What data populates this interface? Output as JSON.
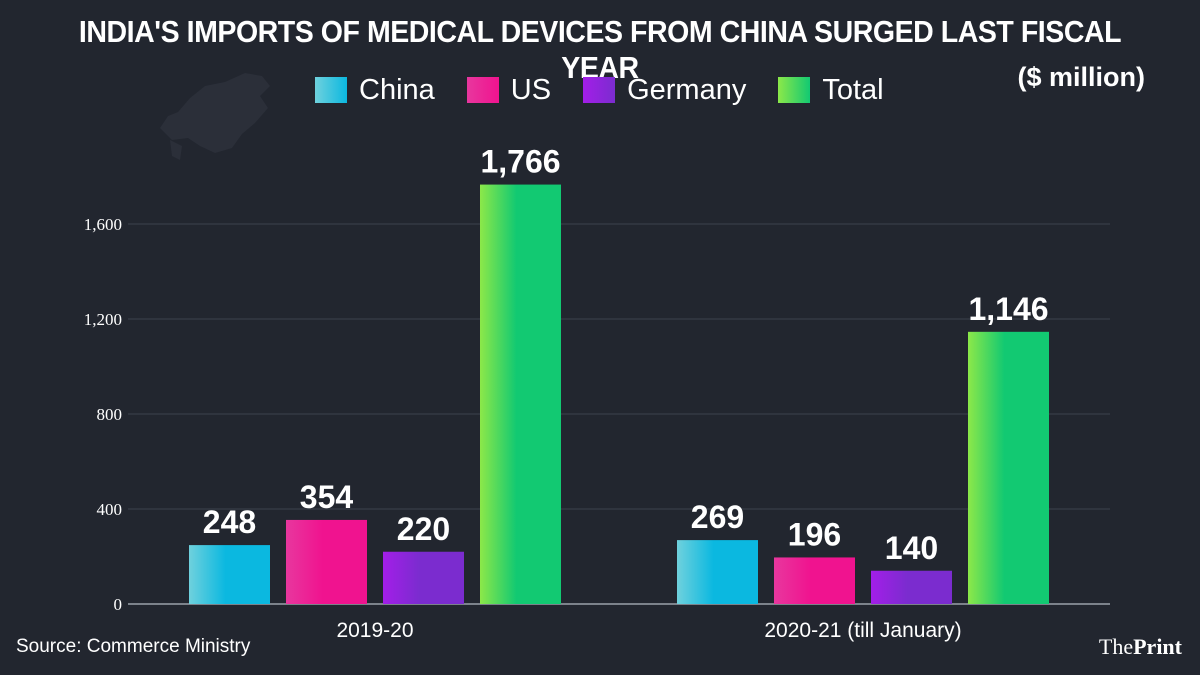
{
  "title": "INDIA'S IMPORTS OF MEDICAL DEVICES FROM CHINA SURGED LAST FISCAL YEAR",
  "unit": "($ million)",
  "source": "Source: Commerce Ministry",
  "logo": {
    "prefix": "The",
    "bold": "Print"
  },
  "colors": {
    "China": [
      "#6fd1dd",
      "#0bb8e0"
    ],
    "US": [
      "#e8379e",
      "#f0138f"
    ],
    "Germany": [
      "#a31ee8",
      "#7b2ccf"
    ],
    "Total": [
      "#8ce849",
      "#12c972"
    ],
    "grid": "#3c414c",
    "axis_text": "#ffffff"
  },
  "chart_data": {
    "type": "bar",
    "categories": [
      "2019-20",
      "2020-21 (till January)"
    ],
    "series": [
      {
        "name": "China",
        "values": [
          248,
          269
        ]
      },
      {
        "name": "US",
        "values": [
          354,
          196
        ]
      },
      {
        "name": "Germany",
        "values": [
          220,
          140
        ]
      },
      {
        "name": "Total",
        "values": [
          1766,
          1146
        ]
      }
    ],
    "data_labels": [
      [
        "248",
        "354",
        "220",
        "1,766"
      ],
      [
        "269",
        "196",
        "140",
        "1,146"
      ]
    ],
    "yticks": [
      0,
      400,
      800,
      1200,
      1600
    ],
    "ytick_labels": [
      "0",
      "400",
      "800",
      "1,200",
      "1,600"
    ],
    "ylim": [
      0,
      1800
    ],
    "legend": "top",
    "grid": true
  }
}
